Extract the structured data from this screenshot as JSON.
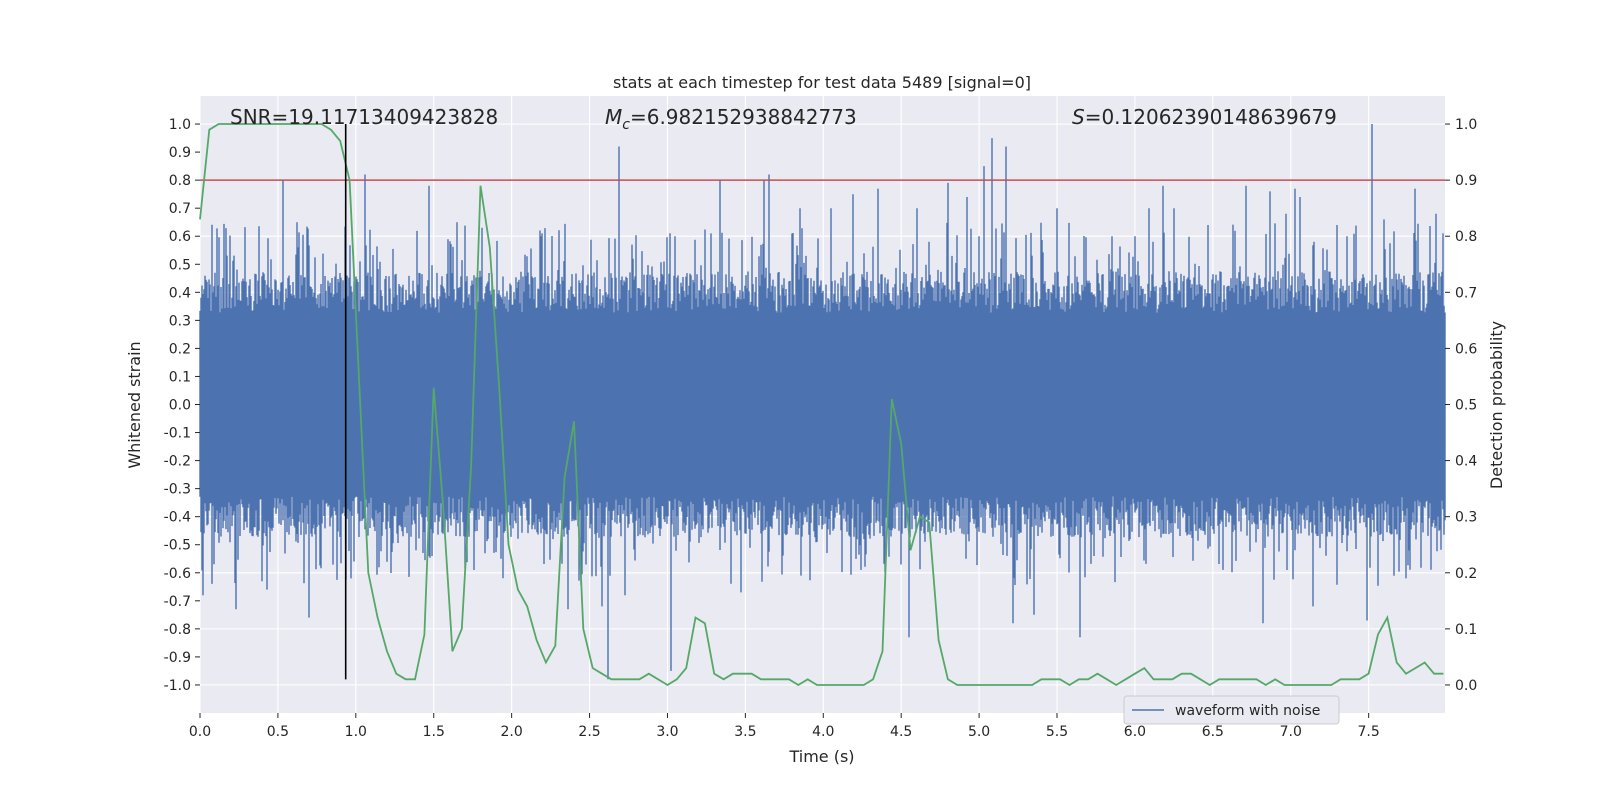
{
  "chart_data": {
    "type": "line",
    "title": "stats at each timestep for test data 5489 [signal=0]",
    "xlabel": "Time (s)",
    "ylabel_left": "Whitened strain",
    "ylabel_right": "Detection probability",
    "xlim": [
      0.0,
      7.99
    ],
    "ylim_left": [
      -1.1,
      1.1
    ],
    "ylim_right": [
      -0.05,
      1.05
    ],
    "x_ticks": [
      "0.0",
      "0.5",
      "1.0",
      "1.5",
      "2.0",
      "2.5",
      "3.0",
      "3.5",
      "4.0",
      "4.5",
      "5.0",
      "5.5",
      "6.0",
      "6.5",
      "7.0",
      "7.5"
    ],
    "y_left_ticks": [
      "-1.0",
      "-0.9",
      "-0.8",
      "-0.7",
      "-0.6",
      "-0.5",
      "-0.4",
      "-0.3",
      "-0.2",
      "-0.1",
      "0.0",
      "0.1",
      "0.2",
      "0.3",
      "0.4",
      "0.5",
      "0.6",
      "0.7",
      "0.8",
      "0.9",
      "1.0"
    ],
    "y_right_ticks": [
      "0.0",
      "0.1",
      "0.2",
      "0.3",
      "0.4",
      "0.5",
      "0.6",
      "0.7",
      "0.8",
      "0.9",
      "1.0"
    ],
    "grid": true,
    "legend_position": "lower-right",
    "annotations": {
      "snr": "SNR=19.11713409423828",
      "mc_symbol": "M",
      "mc_subscript": "c",
      "mc_value": "=6.982152938842773",
      "s_symbol": "S",
      "s_value": "=0.12062390148639679"
    },
    "threshold": {
      "value": 0.9,
      "axis": "right",
      "color": "#c44e52"
    },
    "marker_line": {
      "x": 0.935,
      "y_range": [
        -0.98,
        1.0
      ],
      "color": "#000000"
    },
    "series": [
      {
        "name": "waveform with noise",
        "axis": "left",
        "color": "#4c72b0",
        "kind": "noise",
        "envelope_typical": [
          -0.42,
          0.42
        ],
        "peaks": [
          [
            0.02,
            -0.68
          ],
          [
            0.23,
            -0.73
          ],
          [
            0.43,
            -0.66
          ],
          [
            0.53,
            0.8
          ],
          [
            0.62,
            0.65
          ],
          [
            0.7,
            -0.76
          ],
          [
            0.97,
            -0.62
          ],
          [
            1.06,
            0.82
          ],
          [
            1.15,
            -0.58
          ],
          [
            1.47,
            0.78
          ],
          [
            1.65,
            0.65
          ],
          [
            1.93,
            -0.55
          ],
          [
            2.19,
            0.6
          ],
          [
            2.36,
            -0.73
          ],
          [
            2.58,
            -0.72
          ],
          [
            2.62,
            -0.98
          ],
          [
            2.69,
            0.92
          ],
          [
            2.73,
            -0.68
          ],
          [
            3.02,
            -0.95
          ],
          [
            3.05,
            0.6
          ],
          [
            3.28,
            0.61
          ],
          [
            3.34,
            0.8
          ],
          [
            3.47,
            -0.67
          ],
          [
            3.62,
            0.8
          ],
          [
            3.65,
            0.82
          ],
          [
            3.85,
            0.7
          ],
          [
            4.05,
            0.7
          ],
          [
            4.19,
            0.75
          ],
          [
            4.35,
            0.77
          ],
          [
            4.55,
            -0.83
          ],
          [
            4.6,
            0.7
          ],
          [
            4.8,
            0.79
          ],
          [
            4.92,
            0.74
          ],
          [
            5.03,
            0.85
          ],
          [
            5.08,
            0.95
          ],
          [
            5.17,
            0.92
          ],
          [
            5.22,
            -0.78
          ],
          [
            5.35,
            -0.75
          ],
          [
            5.5,
            0.7
          ],
          [
            5.65,
            -0.83
          ],
          [
            5.85,
            0.6
          ],
          [
            6.0,
            0.6
          ],
          [
            6.09,
            0.7
          ],
          [
            6.18,
            0.78
          ],
          [
            6.25,
            0.7
          ],
          [
            6.47,
            0.64
          ],
          [
            6.71,
            0.78
          ],
          [
            6.82,
            -0.78
          ],
          [
            6.87,
            0.76
          ],
          [
            6.97,
            0.68
          ],
          [
            7.03,
            0.77
          ],
          [
            7.06,
            0.74
          ],
          [
            7.14,
            -0.72
          ],
          [
            7.3,
            0.64
          ],
          [
            7.36,
            0.6
          ],
          [
            7.49,
            -0.77
          ],
          [
            7.52,
            1.0
          ],
          [
            7.6,
            0.66
          ],
          [
            7.74,
            -0.62
          ],
          [
            7.8,
            0.77
          ],
          [
            7.93,
            0.68
          ],
          [
            7.95,
            -0.45
          ]
        ]
      },
      {
        "name": "",
        "axis": "right",
        "color": "#55a868",
        "kind": "line",
        "x": [
          0.0,
          0.06,
          0.12,
          0.18,
          0.24,
          0.3,
          0.36,
          0.42,
          0.48,
          0.54,
          0.6,
          0.66,
          0.72,
          0.78,
          0.84,
          0.9,
          0.96,
          1.02,
          1.08,
          1.14,
          1.2,
          1.26,
          1.32,
          1.38,
          1.44,
          1.5,
          1.56,
          1.62,
          1.68,
          1.74,
          1.8,
          1.86,
          1.92,
          1.98,
          2.04,
          2.1,
          2.16,
          2.22,
          2.28,
          2.34,
          2.4,
          2.46,
          2.52,
          2.58,
          2.64,
          2.7,
          2.76,
          2.82,
          2.88,
          2.94,
          3.0,
          3.06,
          3.12,
          3.18,
          3.24,
          3.3,
          3.36,
          3.42,
          3.48,
          3.54,
          3.6,
          3.66,
          3.72,
          3.78,
          3.84,
          3.9,
          3.96,
          4.02,
          4.08,
          4.14,
          4.2,
          4.26,
          4.32,
          4.38,
          4.44,
          4.5,
          4.56,
          4.62,
          4.68,
          4.74,
          4.8,
          4.86,
          4.92,
          4.98,
          5.04,
          5.1,
          5.16,
          5.22,
          5.28,
          5.34,
          5.4,
          5.46,
          5.52,
          5.58,
          5.64,
          5.7,
          5.76,
          5.82,
          5.88,
          5.94,
          6.0,
          6.06,
          6.12,
          6.18,
          6.24,
          6.3,
          6.36,
          6.42,
          6.48,
          6.54,
          6.6,
          6.66,
          6.72,
          6.78,
          6.84,
          6.9,
          6.96,
          7.02,
          7.08,
          7.14,
          7.2,
          7.26,
          7.32,
          7.38,
          7.44,
          7.5,
          7.56,
          7.62,
          7.68,
          7.74,
          7.8,
          7.86,
          7.92,
          7.98
        ],
        "values": [
          0.83,
          0.99,
          1.0,
          1.0,
          1.0,
          1.0,
          1.0,
          1.0,
          1.0,
          1.0,
          1.0,
          1.0,
          1.0,
          1.0,
          0.99,
          0.97,
          0.9,
          0.55,
          0.2,
          0.12,
          0.06,
          0.02,
          0.01,
          0.01,
          0.09,
          0.53,
          0.32,
          0.06,
          0.1,
          0.39,
          0.89,
          0.78,
          0.53,
          0.25,
          0.17,
          0.14,
          0.08,
          0.04,
          0.07,
          0.37,
          0.47,
          0.1,
          0.03,
          0.02,
          0.01,
          0.01,
          0.01,
          0.01,
          0.02,
          0.01,
          0.0,
          0.01,
          0.03,
          0.12,
          0.11,
          0.02,
          0.01,
          0.02,
          0.02,
          0.02,
          0.01,
          0.01,
          0.01,
          0.01,
          0.0,
          0.01,
          0.0,
          0.0,
          0.0,
          0.0,
          0.0,
          0.0,
          0.01,
          0.06,
          0.51,
          0.43,
          0.24,
          0.3,
          0.29,
          0.08,
          0.01,
          0.0,
          0.0,
          0.0,
          0.0,
          0.0,
          0.0,
          0.0,
          0.0,
          0.0,
          0.01,
          0.01,
          0.01,
          0.0,
          0.01,
          0.01,
          0.02,
          0.01,
          0.0,
          0.01,
          0.02,
          0.03,
          0.01,
          0.01,
          0.01,
          0.02,
          0.02,
          0.01,
          0.0,
          0.01,
          0.01,
          0.01,
          0.01,
          0.01,
          0.0,
          0.01,
          0.0,
          0.0,
          0.0,
          0.0,
          0.0,
          0.0,
          0.01,
          0.01,
          0.01,
          0.02,
          0.09,
          0.12,
          0.04,
          0.02,
          0.03,
          0.04,
          0.02,
          0.02
        ]
      }
    ]
  }
}
